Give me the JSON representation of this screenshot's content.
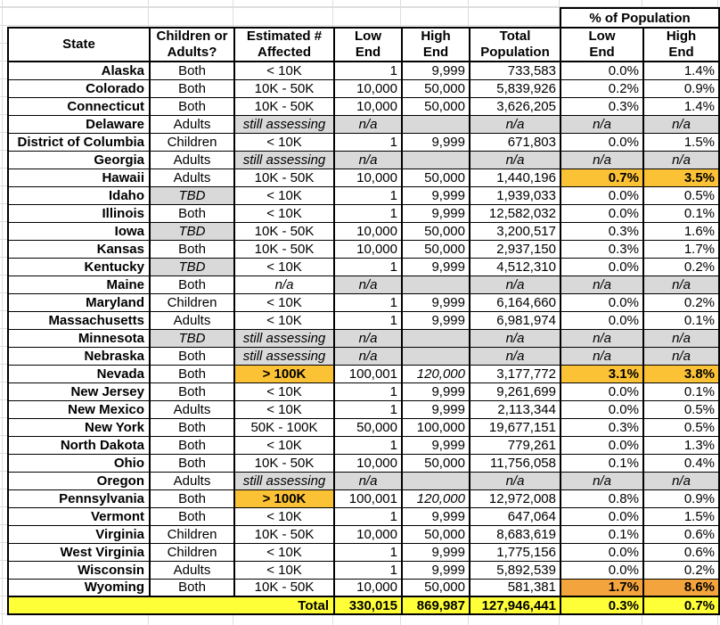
{
  "colors": {
    "gray": "#D9D9D9",
    "gold": "#FCC235",
    "orange": "#F4A43C",
    "yellow": "#FFFF38",
    "border": "#000000"
  },
  "table": {
    "pct_group_header": "% of Population",
    "headers": [
      "State",
      "Children or\nAdults?",
      "Estimated #\nAffected",
      "Low\nEnd",
      "High\nEnd",
      "Total\nPopulation",
      "Low\nEnd",
      "High\nEnd"
    ],
    "rows": [
      {
        "state": "Alaska",
        "group": "Both",
        "estimated": "< 10K",
        "low": "1",
        "high": "9,999",
        "population": "733,583",
        "pct_low": "0.0%",
        "pct_high": "1.4%"
      },
      {
        "state": "Colorado",
        "group": "Both",
        "estimated": "10K - 50K",
        "low": "10,000",
        "high": "50,000",
        "population": "5,839,926",
        "pct_low": "0.2%",
        "pct_high": "0.9%"
      },
      {
        "state": "Connecticut",
        "group": "Both",
        "estimated": "10K - 50K",
        "low": "10,000",
        "high": "50,000",
        "population": "3,626,205",
        "pct_low": "0.3%",
        "pct_high": "1.4%"
      },
      {
        "state": "Delaware",
        "group": "Adults",
        "estimated": "still assessing",
        "low": "n/a",
        "high": "",
        "population": "n/a",
        "pct_low": "n/a",
        "pct_high": "n/a"
      },
      {
        "state": "District of Columbia",
        "group": "Children",
        "estimated": "< 10K",
        "low": "1",
        "high": "9,999",
        "population": "671,803",
        "pct_low": "0.0%",
        "pct_high": "1.5%"
      },
      {
        "state": "Georgia",
        "group": "Adults",
        "estimated": "still assessing",
        "low": "n/a",
        "high": "",
        "population": "n/a",
        "pct_low": "n/a",
        "pct_high": "n/a"
      },
      {
        "state": "Hawaii",
        "group": "Adults",
        "estimated": "10K - 50K",
        "low": "10,000",
        "high": "50,000",
        "population": "1,440,196",
        "pct_low": "0.7%",
        "pct_high": "3.5%",
        "pct_highlight": "gold"
      },
      {
        "state": "Idaho",
        "group": "TBD",
        "estimated": "< 10K",
        "low": "1",
        "high": "9,999",
        "population": "1,939,033",
        "pct_low": "0.0%",
        "pct_high": "0.5%"
      },
      {
        "state": "Illinois",
        "group": "Both",
        "estimated": "< 10K",
        "low": "1",
        "high": "9,999",
        "population": "12,582,032",
        "pct_low": "0.0%",
        "pct_high": "0.1%"
      },
      {
        "state": "Iowa",
        "group": "TBD",
        "estimated": "10K - 50K",
        "low": "10,000",
        "high": "50,000",
        "population": "3,200,517",
        "pct_low": "0.3%",
        "pct_high": "1.6%"
      },
      {
        "state": "Kansas",
        "group": "Both",
        "estimated": "10K - 50K",
        "low": "10,000",
        "high": "50,000",
        "population": "2,937,150",
        "pct_low": "0.3%",
        "pct_high": "1.7%"
      },
      {
        "state": "Kentucky",
        "group": "TBD",
        "estimated": "< 10K",
        "low": "1",
        "high": "9,999",
        "population": "4,512,310",
        "pct_low": "0.0%",
        "pct_high": "0.2%"
      },
      {
        "state": "Maine",
        "group": "Both",
        "estimated": "n/a",
        "low": "n/a",
        "high": "",
        "population": "n/a",
        "pct_low": "n/a",
        "pct_high": "n/a"
      },
      {
        "state": "Maryland",
        "group": "Children",
        "estimated": "< 10K",
        "low": "1",
        "high": "9,999",
        "population": "6,164,660",
        "pct_low": "0.0%",
        "pct_high": "0.2%"
      },
      {
        "state": "Massachusetts",
        "group": "Adults",
        "estimated": "< 10K",
        "low": "1",
        "high": "9,999",
        "population": "6,981,974",
        "pct_low": "0.0%",
        "pct_high": "0.1%"
      },
      {
        "state": "Minnesota",
        "group": "TBD",
        "estimated": "still assessing",
        "low": "n/a",
        "high": "",
        "population": "n/a",
        "pct_low": "n/a",
        "pct_high": "n/a"
      },
      {
        "state": "Nebraska",
        "group": "Both",
        "estimated": "still assessing",
        "low": "n/a",
        "high": "",
        "population": "n/a",
        "pct_low": "n/a",
        "pct_high": "n/a"
      },
      {
        "state": "Nevada",
        "group": "Both",
        "estimated": "> 100K",
        "est_highlight": true,
        "low": "100,001",
        "high": "120,000",
        "high_italic": true,
        "population": "3,177,772",
        "pct_low": "3.1%",
        "pct_high": "3.8%",
        "pct_highlight": "gold"
      },
      {
        "state": "New Jersey",
        "group": "Both",
        "estimated": "< 10K",
        "low": "1",
        "high": "9,999",
        "population": "9,261,699",
        "pct_low": "0.0%",
        "pct_high": "0.1%"
      },
      {
        "state": "New Mexico",
        "group": "Adults",
        "estimated": "< 10K",
        "low": "1",
        "high": "9,999",
        "population": "2,113,344",
        "pct_low": "0.0%",
        "pct_high": "0.5%"
      },
      {
        "state": "New York",
        "group": "Both",
        "estimated": "50K - 100K",
        "low": "50,000",
        "high": "100,000",
        "population": "19,677,151",
        "pct_low": "0.3%",
        "pct_high": "0.5%"
      },
      {
        "state": "North Dakota",
        "group": "Both",
        "estimated": "< 10K",
        "low": "1",
        "high": "9,999",
        "population": "779,261",
        "pct_low": "0.0%",
        "pct_high": "1.3%"
      },
      {
        "state": "Ohio",
        "group": "Both",
        "estimated": "10K - 50K",
        "low": "10,000",
        "high": "50,000",
        "population": "11,756,058",
        "pct_low": "0.1%",
        "pct_high": "0.4%"
      },
      {
        "state": "Oregon",
        "group": "Adults",
        "estimated": "still assessing",
        "low": "n/a",
        "high": "",
        "population": "n/a",
        "pct_low": "n/a",
        "pct_high": "n/a"
      },
      {
        "state": "Pennsylvania",
        "group": "Both",
        "estimated": "> 100K",
        "est_highlight": true,
        "low": "100,001",
        "high": "120,000",
        "high_italic": true,
        "population": "12,972,008",
        "pct_low": "0.8%",
        "pct_high": "0.9%"
      },
      {
        "state": "Vermont",
        "group": "Both",
        "estimated": "< 10K",
        "low": "1",
        "high": "9,999",
        "population": "647,064",
        "pct_low": "0.0%",
        "pct_high": "1.5%"
      },
      {
        "state": "Virginia",
        "group": "Children",
        "estimated": "10K - 50K",
        "low": "10,000",
        "high": "50,000",
        "population": "8,683,619",
        "pct_low": "0.1%",
        "pct_high": "0.6%"
      },
      {
        "state": "West Virginia",
        "group": "Children",
        "estimated": "< 10K",
        "low": "1",
        "high": "9,999",
        "population": "1,775,156",
        "pct_low": "0.0%",
        "pct_high": "0.6%"
      },
      {
        "state": "Wisconsin",
        "group": "Adults",
        "estimated": "< 10K",
        "low": "1",
        "high": "9,999",
        "population": "5,892,539",
        "pct_low": "0.0%",
        "pct_high": "0.2%"
      },
      {
        "state": "Wyoming",
        "group": "Both",
        "estimated": "10K - 50K",
        "low": "10,000",
        "high": "50,000",
        "population": "581,381",
        "pct_low": "1.7%",
        "pct_high": "8.6%",
        "pct_highlight": "orange"
      }
    ],
    "total": {
      "label": "Total",
      "low": "330,015",
      "high": "869,987",
      "population": "127,946,441",
      "pct_low": "0.3%",
      "pct_high": "0.7%"
    }
  }
}
